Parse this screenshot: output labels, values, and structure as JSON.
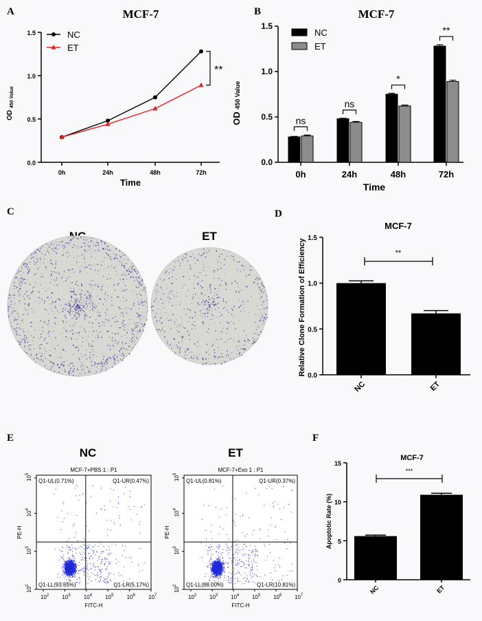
{
  "panels": {
    "A": {
      "letter": "A",
      "title": "MCF-7"
    },
    "B": {
      "letter": "B",
      "title": "MCF-7"
    },
    "C": {
      "letter": "C",
      "labels": [
        "NC",
        "ET"
      ]
    },
    "D": {
      "letter": "D",
      "title": "MCF-7"
    },
    "E": {
      "letter": "E",
      "labels": [
        "NC",
        "ET"
      ]
    },
    "F": {
      "letter": "F",
      "title": "MCF-7"
    }
  },
  "colors": {
    "nc": "#000000",
    "et": "#e8201f",
    "bar_et_gray": "#8c8c8c",
    "bar": "#000000",
    "dots": "#1f28d8",
    "stain": "#4a3a9c",
    "dish": "#d9d9d4"
  },
  "chart_data": [
    {
      "id": "A",
      "type": "line",
      "title": "MCF-7",
      "xlabel": "Time",
      "ylabel_main": "OD",
      "ylabel_sub": "450 Value",
      "categories": [
        "0h",
        "24h",
        "48h",
        "72h"
      ],
      "ylim": [
        0,
        1.5
      ],
      "yticks": [
        "0.0",
        "0.5",
        "1.0",
        "1.5"
      ],
      "series": [
        {
          "name": "NC",
          "marker": "circle",
          "color": "#000000",
          "values": [
            0.29,
            0.48,
            0.75,
            1.28
          ]
        },
        {
          "name": "ET",
          "marker": "triangle",
          "color": "#e8201f",
          "values": [
            0.29,
            0.44,
            0.62,
            0.89
          ]
        }
      ],
      "legend": "top-left",
      "annotation": "**"
    },
    {
      "id": "B",
      "type": "bar",
      "title": "MCF-7",
      "xlabel": "Time",
      "ylabel_main": "OD",
      "ylabel_sub": "450 Value",
      "categories": [
        "0h",
        "24h",
        "48h",
        "72h"
      ],
      "ylim": [
        0,
        1.5
      ],
      "yticks": [
        "0.0",
        "0.5",
        "1.0",
        "1.5"
      ],
      "series": [
        {
          "name": "NC",
          "color": "#000000",
          "values": [
            0.28,
            0.48,
            0.75,
            1.28
          ],
          "errors": [
            0.005,
            0.005,
            0.01,
            0.015
          ]
        },
        {
          "name": "ET",
          "color": "#8c8c8c",
          "values": [
            0.29,
            0.44,
            0.62,
            0.89
          ],
          "errors": [
            0.01,
            0.01,
            0.01,
            0.015
          ]
        }
      ],
      "legend": "top-left",
      "significance": [
        "ns",
        "ns",
        "*",
        "**"
      ]
    },
    {
      "id": "D",
      "type": "bar",
      "title": "MCF-7",
      "ylabel": "Relative Clone Formation of Efficiency",
      "categories": [
        "NC",
        "ET"
      ],
      "values": [
        1.0,
        0.67
      ],
      "errors": [
        0.025,
        0.03
      ],
      "ylim": [
        0,
        1.5
      ],
      "yticks": [
        "0.0",
        "0.5",
        "1.0",
        "1.5"
      ],
      "significance": "**"
    },
    {
      "id": "E",
      "type": "scatter",
      "xlabel": "FITC-H",
      "ylabel": "PE-H",
      "xtick_powers": [
        "2",
        "3",
        "4",
        "5",
        "6",
        "7"
      ],
      "ytick_powers": [
        "2",
        "3",
        "4",
        "5"
      ],
      "plots": [
        {
          "title": "MCF-7+PBS 1 : P1",
          "ul": "Q1-UL(0.71%)",
          "ur": "Q1-UR(0.47%)",
          "ll": "Q1-LL(93.65%)",
          "lr": "Q1-LR(5.17%)"
        },
        {
          "title": "MCF-7+Exo 1 : P1",
          "ul": "Q1-UL(0.81%)",
          "ur": "Q1-UR(0.37%)",
          "ll": "Q1-LL(88.00%)",
          "lr": "Q1-LR(10.81%)"
        }
      ]
    },
    {
      "id": "F",
      "type": "bar",
      "title": "MCF-7",
      "ylabel": "Apoptotic Rate (%)",
      "categories": [
        "NC",
        "ET"
      ],
      "values": [
        5.6,
        10.9
      ],
      "errors": [
        0.12,
        0.2
      ],
      "ylim": [
        0,
        15
      ],
      "yticks": [
        "0",
        "5",
        "10",
        "15"
      ],
      "significance": "***"
    }
  ]
}
